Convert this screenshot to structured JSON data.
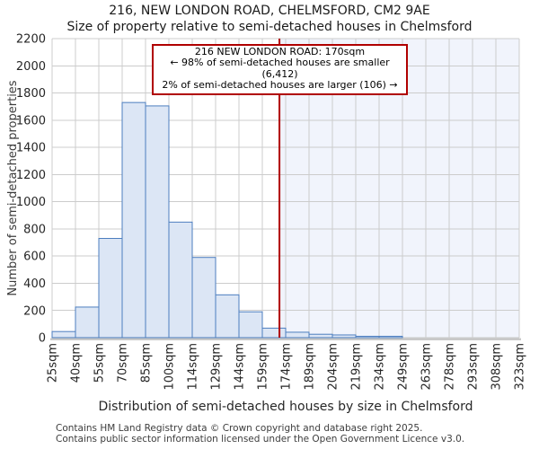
{
  "header": {
    "title": "216, NEW LONDON ROAD, CHELMSFORD, CM2 9AE",
    "subtitle": "Size of property relative to semi-detached houses in Chelmsford"
  },
  "annotation": {
    "line1": "216 NEW LONDON ROAD: 170sqm",
    "line2": "← 98% of semi-detached houses are smaller (6,412)",
    "line3": "2% of semi-detached houses are larger (106) →"
  },
  "footer": {
    "line1": "Contains HM Land Registry data © Crown copyright and database right 2025.",
    "line2": "Contains public sector information licensed under the Open Government Licence v3.0."
  },
  "chart_data": {
    "type": "bar",
    "title": "216, NEW LONDON ROAD, CHELMSFORD, CM2 9AE",
    "subtitle": "Size of property relative to semi-detached houses in Chelmsford",
    "xlabel": "Distribution of semi-detached houses by size in Chelmsford",
    "ylabel": "Number of semi-detached properties",
    "x_tick_labels": [
      "25sqm",
      "40sqm",
      "55sqm",
      "70sqm",
      "85sqm",
      "100sqm",
      "114sqm",
      "129sqm",
      "144sqm",
      "159sqm",
      "174sqm",
      "189sqm",
      "204sqm",
      "219sqm",
      "234sqm",
      "249sqm",
      "263sqm",
      "278sqm",
      "293sqm",
      "308sqm",
      "323sqm"
    ],
    "x_tick_values": [
      25,
      40,
      55,
      70,
      85,
      100,
      114,
      129,
      144,
      159,
      174,
      189,
      204,
      219,
      234,
      249,
      263,
      278,
      293,
      308,
      323
    ],
    "y_ticks": [
      0,
      200,
      400,
      600,
      800,
      1000,
      1200,
      1400,
      1600,
      1800,
      2000,
      2200
    ],
    "ylim": [
      0,
      2200
    ],
    "values": [
      45,
      225,
      730,
      1730,
      1705,
      850,
      590,
      315,
      190,
      70,
      40,
      25,
      20,
      10,
      10,
      0,
      0,
      0,
      0,
      0
    ],
    "grid": true,
    "legend": false,
    "marker": {
      "sqm": 170,
      "label": "216 NEW LONDON ROAD: 170sqm",
      "smaller_pct": 98,
      "smaller_count": "6,412",
      "larger_pct": 2,
      "larger_count": "106"
    },
    "colors": {
      "bar_fill": "#dce6f5",
      "bar_edge": "#4d7ebf",
      "marker_line": "#b00000",
      "shade": "#f1f4fc",
      "gridline": "#cccccc",
      "spine": "#c9c9c9",
      "text": "#262626"
    }
  }
}
